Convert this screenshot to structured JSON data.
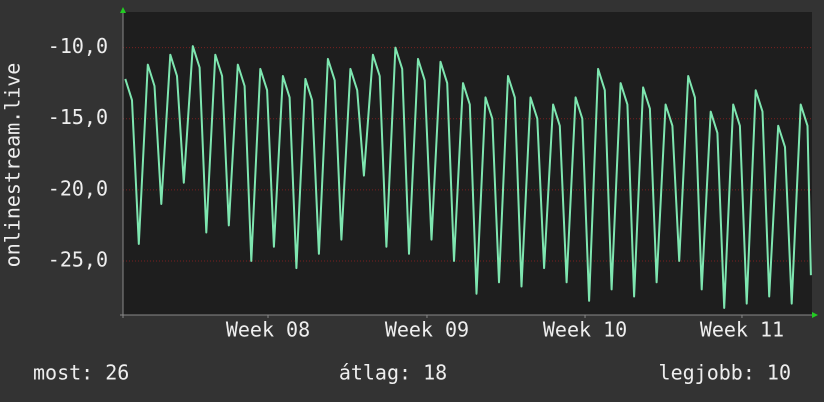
{
  "chart_data": {
    "type": "line",
    "ylabel": "onlinestream.live",
    "x": [
      0.1,
      0.4,
      0.7,
      1.1,
      1.4,
      1.7,
      2.1,
      2.4,
      2.7,
      3.1,
      3.4,
      3.7,
      4.1,
      4.4,
      4.7,
      5.1,
      5.4,
      5.7,
      6.1,
      6.4,
      6.7,
      7.1,
      7.4,
      7.7,
      8.1,
      8.4,
      8.7,
      9.1,
      9.4,
      9.7,
      10.1,
      10.4,
      10.7,
      11.1,
      11.4,
      11.7,
      12.1,
      12.4,
      12.7,
      13.1,
      13.4,
      13.7,
      14.1,
      14.4,
      14.7,
      15.1,
      15.4,
      15.7,
      16.1,
      16.4,
      16.7,
      17.1,
      17.4,
      17.7,
      18.1,
      18.4,
      18.7,
      19.1,
      19.4,
      19.7,
      20.1,
      20.4,
      20.7,
      21.1,
      21.4,
      21.7,
      22.1,
      22.4,
      22.7,
      23.1,
      23.4,
      23.7,
      24.1,
      24.4,
      24.7,
      25.1,
      25.4,
      25.7,
      26.1,
      26.4,
      26.7,
      27.1,
      27.4,
      27.7,
      28.1,
      28.4,
      28.7,
      29.1,
      29.4,
      29.7,
      30.1,
      30.4,
      30.55
    ],
    "values": [
      -12.2,
      -13.7,
      -23.8,
      -11.2,
      -12.7,
      -21,
      -10.5,
      -12,
      -19.5,
      -9.9,
      -11.4,
      -23,
      -10.5,
      -12,
      -22.5,
      -11.2,
      -12.7,
      -25,
      -11.5,
      -13,
      -24,
      -12,
      -13.5,
      -25.5,
      -12.2,
      -13.7,
      -24.5,
      -10.8,
      -12.3,
      -23.5,
      -11.5,
      -13,
      -19,
      -10.5,
      -12,
      -24,
      -10,
      -11.5,
      -24.5,
      -10.8,
      -12.3,
      -23.5,
      -11,
      -12.5,
      -25,
      -12.5,
      -14,
      -27.3,
      -13.5,
      -15,
      -26.5,
      -12,
      -13.5,
      -26.8,
      -13.5,
      -15,
      -25.5,
      -14,
      -15.5,
      -26.5,
      -13.5,
      -15,
      -27.8,
      -11.5,
      -13,
      -27,
      -12.5,
      -14,
      -27.5,
      -12.8,
      -14.3,
      -26.5,
      -14,
      -15.5,
      -25,
      -12,
      -13.5,
      -27,
      -14.5,
      -16,
      -28.3,
      -14,
      -15.5,
      -28,
      -13,
      -14.5,
      -27.5,
      -15.5,
      -17,
      -28,
      -14,
      -15.5,
      -26
    ],
    "color": "#7ee6b0",
    "xlim": [
      0,
      30.6
    ],
    "xticks": [
      {
        "value": 6.44,
        "label": "Week 08"
      },
      {
        "value": 13.5,
        "label": "Week 09"
      },
      {
        "value": 20.52,
        "label": "Week 10"
      },
      {
        "value": 27.49,
        "label": "Week 11"
      }
    ],
    "ylim": [
      -28.8,
      -7.5
    ],
    "yticks": [
      {
        "value": -10,
        "label": "-10,0"
      },
      {
        "value": -15,
        "label": "-15,0"
      },
      {
        "value": -20,
        "label": "-20,0"
      },
      {
        "value": -25,
        "label": "-25,0"
      }
    ],
    "grid": true,
    "stats": [
      "most: 26",
      "átlag: 18",
      "legjobb: 10"
    ]
  }
}
